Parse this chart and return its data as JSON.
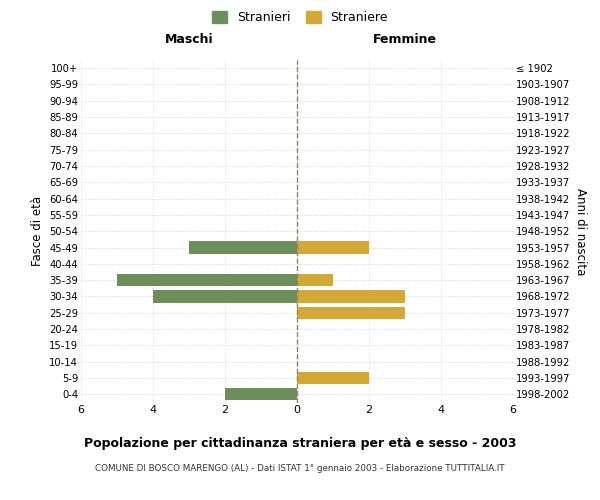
{
  "age_groups": [
    "100+",
    "95-99",
    "90-94",
    "85-89",
    "80-84",
    "75-79",
    "70-74",
    "65-69",
    "60-64",
    "55-59",
    "50-54",
    "45-49",
    "40-44",
    "35-39",
    "30-34",
    "25-29",
    "20-24",
    "15-19",
    "10-14",
    "5-9",
    "0-4"
  ],
  "birth_years": [
    "≤ 1902",
    "1903-1907",
    "1908-1912",
    "1913-1917",
    "1918-1922",
    "1923-1927",
    "1928-1932",
    "1933-1937",
    "1938-1942",
    "1943-1947",
    "1948-1952",
    "1953-1957",
    "1958-1962",
    "1963-1967",
    "1968-1972",
    "1973-1977",
    "1978-1982",
    "1983-1987",
    "1988-1992",
    "1993-1997",
    "1998-2002"
  ],
  "maschi": [
    0,
    0,
    0,
    0,
    0,
    0,
    0,
    0,
    0,
    0,
    0,
    3,
    0,
    5,
    4,
    0,
    0,
    0,
    0,
    0,
    2
  ],
  "femmine": [
    0,
    0,
    0,
    0,
    0,
    0,
    0,
    0,
    0,
    0,
    0,
    2,
    0,
    1,
    3,
    3,
    0,
    0,
    0,
    2,
    0
  ],
  "maschi_color": "#6b8e5a",
  "femmine_color": "#d4a837",
  "title": "Popolazione per cittadinanza straniera per età e sesso - 2003",
  "subtitle": "COMUNE DI BOSCO MARENGO (AL) - Dati ISTAT 1° gennaio 2003 - Elaborazione TUTTITALIA.IT",
  "xlabel_left": "Maschi",
  "xlabel_right": "Femmine",
  "ylabel_left": "Fasce di età",
  "ylabel_right": "Anni di nascita",
  "xlim": 6,
  "legend_stranieri": "Stranieri",
  "legend_straniere": "Straniere",
  "background_color": "#ffffff",
  "grid_color": "#d0d0d0",
  "bar_height": 0.75
}
